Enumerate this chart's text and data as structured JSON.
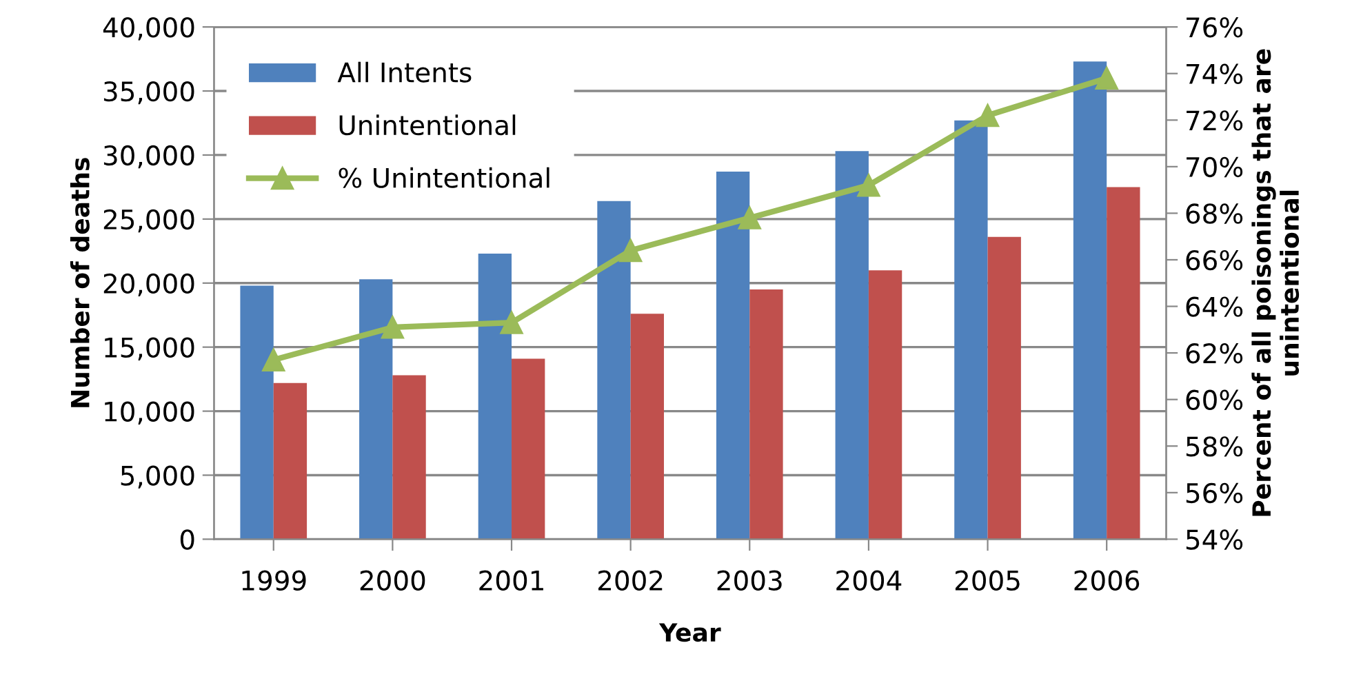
{
  "chart_data": {
    "type": "bar",
    "xlabel": "Year",
    "ylabel": "Number of deaths",
    "y2label": "Percent of all poisonings that are unintentional",
    "categories": [
      "1999",
      "2000",
      "2001",
      "2002",
      "2003",
      "2004",
      "2005",
      "2006"
    ],
    "series": [
      {
        "name": "All Intents",
        "color": "#4f81bd",
        "values": [
          19800,
          20300,
          22300,
          26400,
          28700,
          30300,
          32700,
          37300
        ]
      },
      {
        "name": "Unintentional",
        "color": "#c0504d",
        "values": [
          12200,
          12800,
          14100,
          17600,
          19500,
          21000,
          23600,
          27500
        ]
      },
      {
        "name": "% Unintentional",
        "type": "line",
        "axis": "y2",
        "color": "#9bbb59",
        "marker": "triangle",
        "values": [
          61.7,
          63.1,
          63.3,
          66.4,
          67.8,
          69.2,
          72.2,
          73.8
        ]
      }
    ],
    "ylim": [
      0,
      40000
    ],
    "yticks": [
      {
        "value": 0,
        "label": "0"
      },
      {
        "value": 5000,
        "label": "5,000"
      },
      {
        "value": 10000,
        "label": "10,000"
      },
      {
        "value": 15000,
        "label": "15,000"
      },
      {
        "value": 20000,
        "label": "20,000"
      },
      {
        "value": 25000,
        "label": "25,000"
      },
      {
        "value": 30000,
        "label": "30,000"
      },
      {
        "value": 35000,
        "label": "35,000"
      },
      {
        "value": 40000,
        "label": "40,000"
      }
    ],
    "y2lim": [
      54,
      76
    ],
    "y2ticks": [
      {
        "value": 54,
        "label": "54%"
      },
      {
        "value": 56,
        "label": "56%"
      },
      {
        "value": 58,
        "label": "58%"
      },
      {
        "value": 60,
        "label": "60%"
      },
      {
        "value": 62,
        "label": "62%"
      },
      {
        "value": 64,
        "label": "64%"
      },
      {
        "value": 66,
        "label": "66%"
      },
      {
        "value": 68,
        "label": "68%"
      },
      {
        "value": 70,
        "label": "70%"
      },
      {
        "value": 72,
        "label": "72%"
      },
      {
        "value": 74,
        "label": "74%"
      },
      {
        "value": 76,
        "label": "76%"
      }
    ],
    "grid": "y",
    "legend": "top left"
  }
}
